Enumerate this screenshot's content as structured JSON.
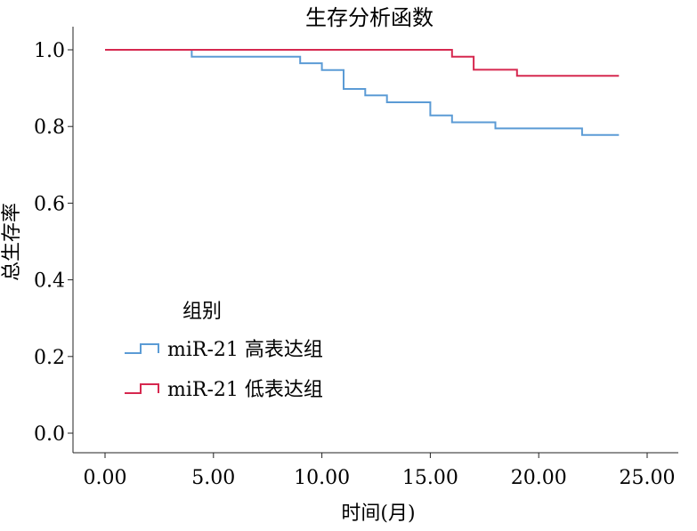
{
  "chart_data": {
    "type": "line",
    "title": "生存分析函数",
    "xlabel": "时间(月)",
    "ylabel": "总生存率",
    "xlim": [
      0,
      25
    ],
    "ylim": [
      0,
      1.0
    ],
    "x_ticks": [
      "0.00",
      "5.00",
      "10.00",
      "15.00",
      "20.00",
      "25.00"
    ],
    "y_ticks": [
      "0.0",
      "0.2",
      "0.4",
      "0.6",
      "0.8",
      "1.0"
    ],
    "grid": false,
    "step": true,
    "legend": {
      "title": "组别",
      "placement": "left-middle"
    },
    "series": [
      {
        "name": "miR-21 高表达组",
        "color": "#5b9bd5",
        "points": [
          [
            0,
            1.0
          ],
          [
            4,
            0.982
          ],
          [
            9,
            0.965
          ],
          [
            10,
            0.947
          ],
          [
            11,
            0.898
          ],
          [
            12,
            0.881
          ],
          [
            13,
            0.863
          ],
          [
            15,
            0.829
          ],
          [
            16,
            0.811
          ],
          [
            18,
            0.795
          ],
          [
            22,
            0.778
          ],
          [
            23.7,
            0.778
          ]
        ]
      },
      {
        "name": "miR-21 低表达组",
        "color": "#d6284f",
        "points": [
          [
            0,
            1.0
          ],
          [
            16,
            0.982
          ],
          [
            17,
            0.948
          ],
          [
            19,
            0.932
          ],
          [
            23.7,
            0.932
          ]
        ]
      }
    ]
  }
}
